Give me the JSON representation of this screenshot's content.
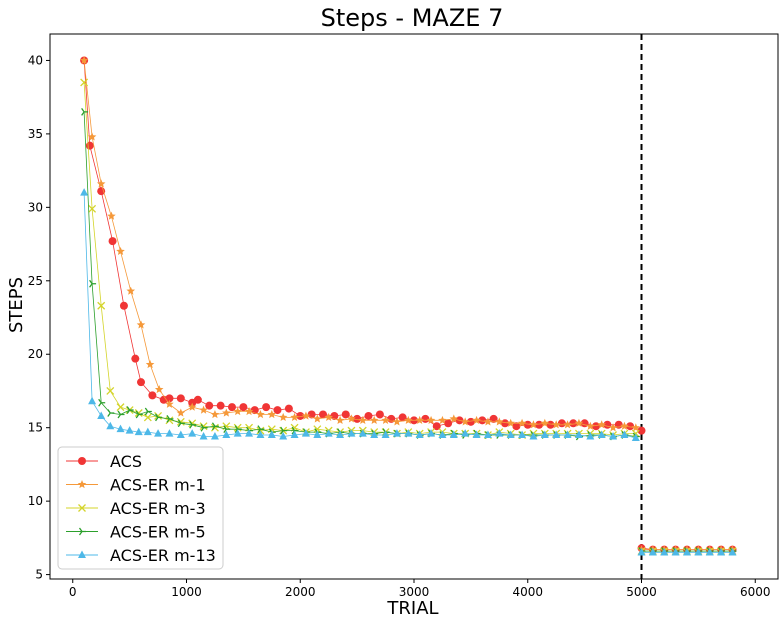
{
  "chart_data": {
    "type": "line",
    "title": "Steps - MAZE 7",
    "xlabel": "TRIAL",
    "ylabel": "STEPS",
    "xlim": [
      -200,
      6200
    ],
    "ylim": [
      4.7,
      41.8
    ],
    "x_ticks": [
      0,
      1000,
      2000,
      3000,
      4000,
      5000,
      6000
    ],
    "y_ticks": [
      5,
      10,
      15,
      20,
      25,
      30,
      35,
      40
    ],
    "grid": false,
    "legend_position": "lower-left",
    "vline": {
      "x": 5000,
      "style": "dashed",
      "color": "#000000"
    },
    "series": [
      {
        "name": "ACS",
        "color": "#f03535",
        "marker": "circle",
        "x": [
          100,
          150,
          250,
          350,
          450,
          550,
          600,
          700,
          800,
          850,
          950,
          1050,
          1100,
          1200,
          1300,
          1400,
          1500,
          1600,
          1700,
          1800,
          1900,
          2000,
          2100,
          2200,
          2300,
          2400,
          2500,
          2600,
          2700,
          2800,
          2900,
          3000,
          3100,
          3200,
          3300,
          3400,
          3500,
          3600,
          3700,
          3800,
          3900,
          4000,
          4100,
          4200,
          4300,
          4400,
          4500,
          4600,
          4700,
          4800,
          4900,
          5000
        ],
        "y": [
          40,
          34.2,
          31.1,
          27.7,
          23.3,
          19.7,
          18.1,
          17.2,
          16.9,
          17.0,
          17.0,
          16.7,
          16.9,
          16.5,
          16.5,
          16.4,
          16.4,
          16.2,
          16.4,
          16.2,
          16.3,
          15.8,
          15.9,
          15.9,
          15.8,
          15.9,
          15.6,
          15.8,
          15.9,
          15.6,
          15.7,
          15.5,
          15.6,
          15.1,
          15.3,
          15.5,
          15.4,
          15.5,
          15.6,
          15.3,
          15.1,
          15.2,
          15.2,
          15.2,
          15.3,
          15.3,
          15.3,
          15.1,
          15.2,
          15.2,
          15.1,
          14.8
        ],
        "x2": [
          5000,
          5100,
          5200,
          5300,
          5400,
          5500,
          5600,
          5700,
          5800
        ],
        "y2": [
          6.8,
          6.7,
          6.7,
          6.7,
          6.7,
          6.7,
          6.7,
          6.7,
          6.7
        ]
      },
      {
        "name": "ACS-ER m-1",
        "color": "#f5993a",
        "marker": "star",
        "x": [
          100,
          170,
          250,
          340,
          420,
          510,
          600,
          680,
          760,
          850,
          950,
          1050,
          1150,
          1250,
          1350,
          1450,
          1550,
          1650,
          1750,
          1850,
          1950,
          2050,
          2150,
          2250,
          2350,
          2450,
          2550,
          2650,
          2750,
          2850,
          2950,
          3050,
          3150,
          3250,
          3350,
          3450,
          3550,
          3650,
          3750,
          3850,
          3950,
          4050,
          4150,
          4250,
          4350,
          4450,
          4550,
          4650,
          4750,
          4850,
          4950
        ],
        "y": [
          40,
          34.8,
          31.6,
          29.4,
          27.0,
          24.3,
          22.0,
          19.3,
          17.6,
          16.6,
          16.0,
          16.4,
          16.2,
          15.9,
          16.0,
          16.1,
          16.1,
          15.9,
          15.9,
          15.7,
          15.7,
          15.8,
          15.6,
          15.7,
          15.5,
          15.6,
          15.5,
          15.5,
          15.5,
          15.4,
          15.5,
          15.5,
          15.5,
          15.5,
          15.6,
          15.4,
          15.5,
          15.4,
          15.4,
          15.3,
          15.3,
          15.2,
          15.3,
          15.2,
          15.2,
          15.3,
          15.1,
          15.2,
          15.0,
          15.1,
          15.0
        ],
        "x2": [
          5000,
          5100,
          5200,
          5300,
          5400,
          5500,
          5600,
          5700,
          5800
        ],
        "y2": [
          6.7,
          6.7,
          6.7,
          6.7,
          6.7,
          6.7,
          6.7,
          6.7,
          6.7
        ]
      },
      {
        "name": "ACS-ER m-3",
        "color": "#d4d42a",
        "marker": "x",
        "x": [
          100,
          170,
          250,
          330,
          420,
          500,
          580,
          660,
          750,
          850,
          950,
          1050,
          1150,
          1250,
          1350,
          1450,
          1550,
          1650,
          1750,
          1850,
          1950,
          2050,
          2150,
          2250,
          2350,
          2450,
          2550,
          2650,
          2750,
          2850,
          2950,
          3050,
          3150,
          3250,
          3350,
          3450,
          3550,
          3650,
          3750,
          3850,
          3950,
          4050,
          4150,
          4250,
          4350,
          4450,
          4550,
          4650,
          4750,
          4850,
          4950
        ],
        "y": [
          38.5,
          29.9,
          23.3,
          17.5,
          16.4,
          16.2,
          16.0,
          15.7,
          15.8,
          15.5,
          15.4,
          15.3,
          15.1,
          15.0,
          15.1,
          15.0,
          15.0,
          14.8,
          14.9,
          14.8,
          15.0,
          14.7,
          14.9,
          14.8,
          14.7,
          14.8,
          14.8,
          14.7,
          14.7,
          14.6,
          14.7,
          14.6,
          14.7,
          14.7,
          14.6,
          14.6,
          14.6,
          14.5,
          14.7,
          14.6,
          14.5,
          14.6,
          14.6,
          14.6,
          14.6,
          14.6,
          14.6,
          14.6,
          14.5,
          14.6,
          14.6
        ],
        "x2": [
          5000,
          5100,
          5200,
          5300,
          5400,
          5500,
          5600,
          5700,
          5800
        ],
        "y2": [
          6.6,
          6.6,
          6.6,
          6.6,
          6.6,
          6.6,
          6.6,
          6.6,
          6.6
        ]
      },
      {
        "name": "ACS-ER m-5",
        "color": "#2ca02c",
        "marker": "tri-right",
        "x": [
          100,
          170,
          250,
          330,
          420,
          500,
          580,
          660,
          750,
          850,
          950,
          1050,
          1150,
          1250,
          1350,
          1450,
          1550,
          1650,
          1750,
          1850,
          1950,
          2050,
          2150,
          2250,
          2350,
          2450,
          2550,
          2650,
          2750,
          2850,
          2950,
          3050,
          3150,
          3250,
          3350,
          3450,
          3550,
          3650,
          3750,
          3850,
          3950,
          4050,
          4150,
          4250,
          4350,
          4450,
          4550,
          4650,
          4750,
          4850,
          4950
        ],
        "y": [
          36.5,
          24.8,
          16.7,
          16.0,
          15.9,
          16.2,
          15.9,
          16.1,
          15.7,
          15.6,
          15.3,
          15.2,
          15.0,
          15.1,
          14.9,
          14.9,
          14.8,
          14.9,
          14.7,
          14.8,
          14.8,
          14.7,
          14.7,
          14.6,
          14.7,
          14.6,
          14.6,
          14.6,
          14.7,
          14.6,
          14.6,
          14.5,
          14.6,
          14.5,
          14.6,
          14.5,
          14.6,
          14.5,
          14.5,
          14.5,
          14.5,
          14.5,
          14.5,
          14.5,
          14.5,
          14.4,
          14.5,
          14.5,
          14.4,
          14.5,
          14.4
        ],
        "x2": [
          5000,
          5100,
          5200,
          5300,
          5400,
          5500,
          5600,
          5700,
          5800
        ],
        "y2": [
          6.6,
          6.6,
          6.6,
          6.6,
          6.6,
          6.6,
          6.6,
          6.6,
          6.6
        ]
      },
      {
        "name": "ACS-ER m-13",
        "color": "#4db8e8",
        "marker": "triangle-up",
        "x": [
          100,
          170,
          250,
          330,
          420,
          500,
          580,
          660,
          750,
          850,
          950,
          1050,
          1150,
          1250,
          1350,
          1450,
          1550,
          1650,
          1750,
          1850,
          1950,
          2050,
          2150,
          2250,
          2350,
          2450,
          2550,
          2650,
          2750,
          2850,
          2950,
          3050,
          3150,
          3250,
          3350,
          3450,
          3550,
          3650,
          3750,
          3850,
          3950,
          4050,
          4150,
          4250,
          4350,
          4450,
          4550,
          4650,
          4750,
          4850,
          4950
        ],
        "y": [
          31.0,
          16.8,
          15.8,
          15.1,
          14.9,
          14.8,
          14.7,
          14.7,
          14.6,
          14.6,
          14.5,
          14.6,
          14.4,
          14.4,
          14.5,
          14.6,
          14.6,
          14.5,
          14.5,
          14.4,
          14.5,
          14.6,
          14.5,
          14.6,
          14.5,
          14.6,
          14.6,
          14.5,
          14.5,
          14.6,
          14.6,
          14.5,
          14.6,
          14.5,
          14.5,
          14.6,
          14.5,
          14.5,
          14.6,
          14.5,
          14.5,
          14.4,
          14.5,
          14.5,
          14.5,
          14.5,
          14.4,
          14.5,
          14.4,
          14.5,
          14.3
        ],
        "x2": [
          5000,
          5100,
          5200,
          5300,
          5400,
          5500,
          5600,
          5700,
          5800
        ],
        "y2": [
          6.5,
          6.5,
          6.5,
          6.5,
          6.5,
          6.5,
          6.5,
          6.5,
          6.5
        ]
      }
    ]
  }
}
